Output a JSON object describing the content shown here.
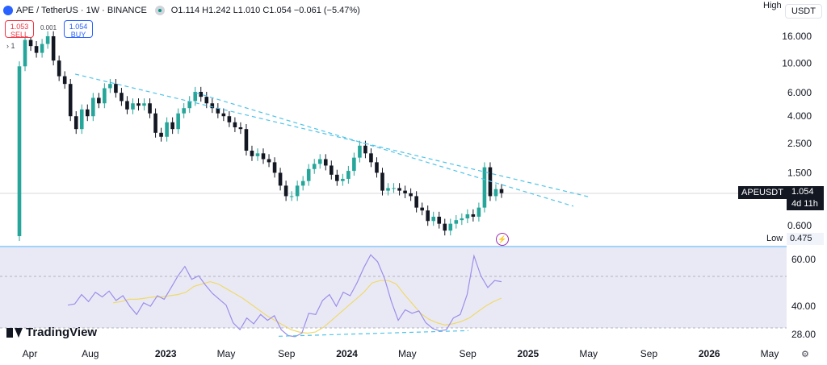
{
  "header": {
    "symbol": "APE / TetherUS · 1W · BINANCE",
    "ohlc": "O1.114 H1.242 L1.010 C1.054 −0.061 (−5.47%)"
  },
  "trade": {
    "sell_price": "1.053",
    "sell_label": "SELL",
    "buy_price": "1.054",
    "buy_label": "BUY",
    "spread": "0.001",
    "qty": "1"
  },
  "labels": {
    "high": "High",
    "currency": "USDT",
    "low": "Low",
    "low_value": "0.475",
    "symbol_tag": "APEUSDT",
    "last_price": "1.054",
    "countdown": "4d 11h",
    "brand": "TradingView"
  },
  "colors": {
    "up": "#26a69a",
    "down": "#131722",
    "trend": "#4fc3e8",
    "rsi": "#9c8ee8",
    "rsi_ma": "#f0d96a",
    "rsi_band": "#e9e9f6"
  },
  "chart_data": [
    {
      "type": "candlestick",
      "scale": "log",
      "y_ticks": [
        16,
        10,
        6,
        4,
        2.5,
        1.5,
        0.6
      ],
      "y_tick_labels": [
        "16.000",
        "10.000",
        "6.000",
        "4.000",
        "2.500",
        "1.500",
        "0.600"
      ],
      "x_tick_labels": [
        "Apr",
        "Aug",
        "2023",
        "May",
        "Sep",
        "2024",
        "May",
        "Sep",
        "2025",
        "May",
        "Sep",
        "2026",
        "May"
      ],
      "last_price": 1.054,
      "high_label": "High",
      "low": 0.475,
      "closes": [
        9.5,
        15.0,
        13.5,
        12.0,
        14.0,
        16.0,
        10.5,
        8.0,
        7.0,
        4.0,
        3.2,
        4.5,
        4.0,
        5.5,
        5.0,
        6.5,
        7.0,
        6.0,
        5.2,
        4.5,
        5.0,
        4.8,
        5.0,
        4.2,
        3.0,
        2.8,
        3.6,
        3.2,
        4.2,
        4.6,
        5.2,
        6.1,
        5.6,
        5.0,
        4.6,
        4.2,
        4.0,
        3.6,
        3.3,
        3.2,
        2.2,
        2.0,
        2.1,
        1.9,
        1.8,
        1.5,
        1.2,
        1.0,
        1.0,
        1.2,
        1.3,
        1.6,
        1.75,
        1.9,
        1.7,
        1.45,
        1.3,
        1.35,
        1.55,
        1.95,
        2.4,
        2.1,
        1.8,
        1.5,
        1.1,
        1.15,
        1.15,
        1.1,
        1.05,
        1.0,
        0.82,
        0.78,
        0.65,
        0.7,
        0.62,
        0.55,
        0.62,
        0.66,
        0.68,
        0.73,
        0.7,
        0.82,
        1.65,
        1.0,
        1.13,
        1.054
      ],
      "trendlines": [
        {
          "from": [
            "2022-07",
            8.3
          ],
          "to": [
            "2025-05",
            0.99
          ]
        },
        {
          "from": [
            "2023-03",
            6.0
          ],
          "to": [
            "2025-04",
            0.84
          ]
        }
      ]
    },
    {
      "type": "line",
      "indicator": "RSI",
      "y_ticks": [
        60,
        40,
        28
      ],
      "y_tick_labels": [
        "60.00",
        "40.00",
        "28.00"
      ],
      "series": [
        {
          "values": [
            40.5,
            41.0,
            45.0,
            42.0,
            46.0,
            44.0,
            46.5,
            42.5,
            44.5,
            40.0,
            36.5,
            41.5,
            40.0,
            44.5,
            43.0,
            48.0,
            53.0,
            57.0,
            51.5,
            53.0,
            49.0,
            45.5,
            43.0,
            40.5,
            33.0,
            30.0,
            35.0,
            32.5,
            36.5,
            34.0,
            36.0,
            30.0,
            27.5,
            27.0,
            28.5,
            37.0,
            36.5,
            42.5,
            45.0,
            40.0,
            46.0,
            44.5,
            50.0,
            56.5,
            62.0,
            59.0,
            52.0,
            42.0,
            34.0,
            38.5,
            37.0,
            38.0,
            33.0,
            30.5,
            29.5,
            30.0,
            35.0,
            36.5,
            45.0,
            61.5,
            53.0,
            48.0,
            51.0,
            50.5
          ]
        },
        {
          "values": [
            41.5,
            42.0,
            43.0,
            43.0,
            43.5,
            44.0,
            44.0,
            44.5,
            45.0,
            46.0,
            48.5,
            49.5,
            50.5,
            49.5,
            47.5,
            45.5,
            43.5,
            41.0,
            38.5,
            36.0,
            34.0,
            32.0,
            30.0,
            29.0,
            28.5,
            29.0,
            31.0,
            34.0,
            37.0,
            40.0,
            43.0,
            46.0,
            50.0,
            51.0,
            51.0,
            49.5,
            45.0,
            41.0,
            37.0,
            34.5,
            33.0,
            32.0,
            32.5,
            33.5,
            35.0,
            37.5,
            40.0,
            42.0,
            43.5
          ]
        }
      ]
    }
  ]
}
